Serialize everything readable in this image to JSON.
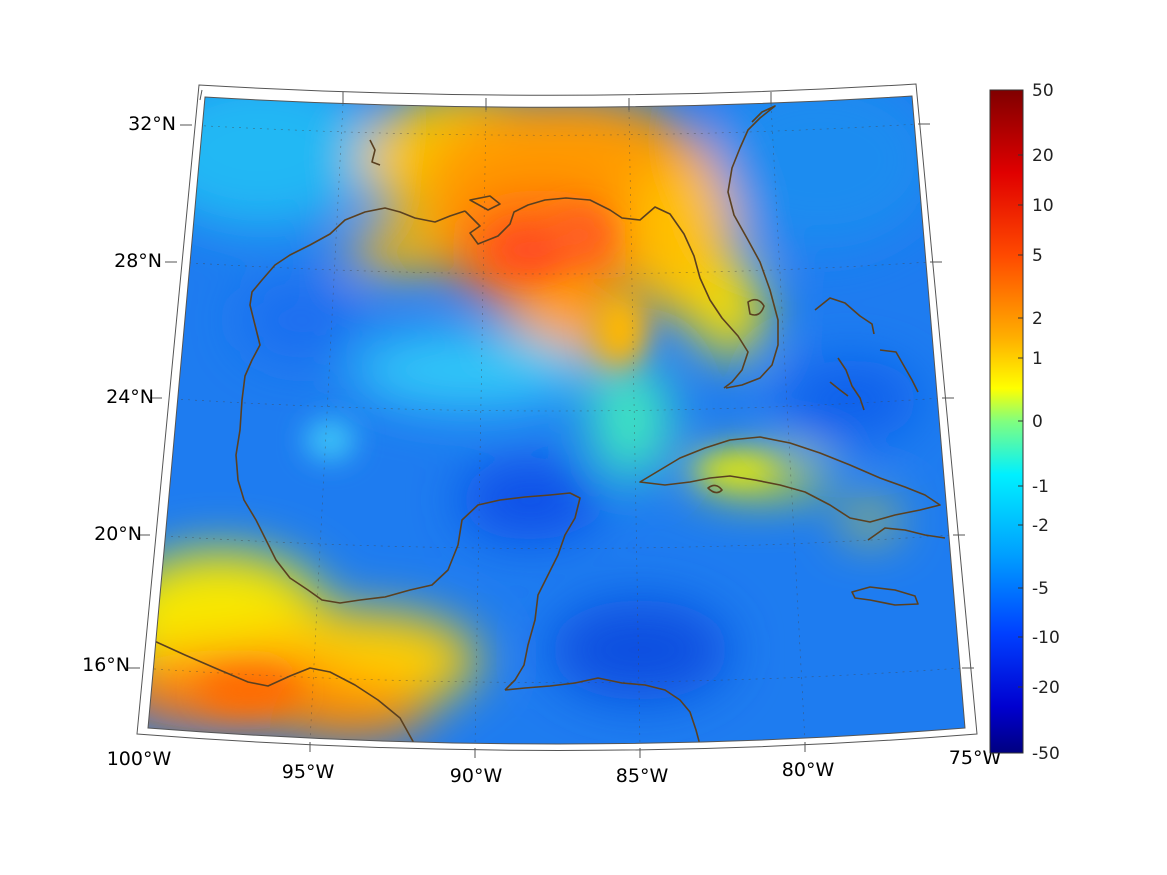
{
  "map": {
    "lat_labels": [
      "32°N",
      "28°N",
      "24°N",
      "20°N",
      "16°N"
    ],
    "lon_labels": [
      "100°W",
      "95°W",
      "90°W",
      "85°W",
      "80°W",
      "75°W"
    ],
    "extent": {
      "lon_min": -100,
      "lon_max": -75,
      "lat_min": 14,
      "lat_max": 33
    },
    "projection": "conic",
    "coastline_color": "#5a4020",
    "graticule": "dotted"
  },
  "colorbar": {
    "tick_labels": [
      "50",
      "20",
      "10",
      "5",
      "2",
      "1",
      "0",
      "-1",
      "-2",
      "-5",
      "-10",
      "-20",
      "-50"
    ],
    "tick_values": [
      50,
      20,
      10,
      5,
      2,
      1,
      0,
      -1,
      -2,
      -5,
      -10,
      -20,
      -50
    ],
    "colormap": "jet",
    "range": [
      -50,
      50
    ]
  }
}
